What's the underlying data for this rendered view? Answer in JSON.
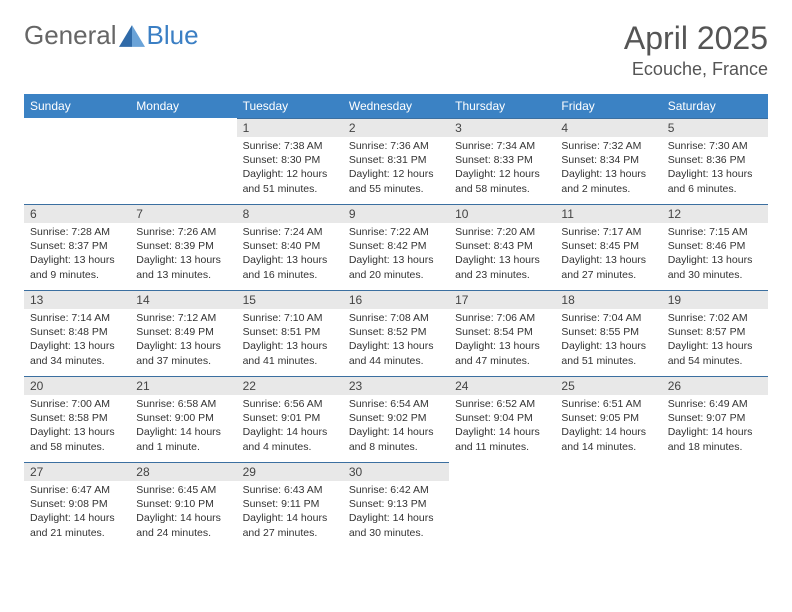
{
  "brand": {
    "part1": "General",
    "part2": "Blue"
  },
  "title": "April 2025",
  "location": "Ecouche, France",
  "colors": {
    "header_bg": "#3b82c4",
    "header_text": "#ffffff",
    "daynum_bg": "#e8e8e8",
    "border": "#3b6fa0",
    "text": "#333333",
    "title_text": "#555555"
  },
  "day_names": [
    "Sunday",
    "Monday",
    "Tuesday",
    "Wednesday",
    "Thursday",
    "Friday",
    "Saturday"
  ],
  "weeks": [
    [
      null,
      null,
      {
        "n": "1",
        "sr": "Sunrise: 7:38 AM",
        "ss": "Sunset: 8:30 PM",
        "d1": "Daylight: 12 hours",
        "d2": "and 51 minutes."
      },
      {
        "n": "2",
        "sr": "Sunrise: 7:36 AM",
        "ss": "Sunset: 8:31 PM",
        "d1": "Daylight: 12 hours",
        "d2": "and 55 minutes."
      },
      {
        "n": "3",
        "sr": "Sunrise: 7:34 AM",
        "ss": "Sunset: 8:33 PM",
        "d1": "Daylight: 12 hours",
        "d2": "and 58 minutes."
      },
      {
        "n": "4",
        "sr": "Sunrise: 7:32 AM",
        "ss": "Sunset: 8:34 PM",
        "d1": "Daylight: 13 hours",
        "d2": "and 2 minutes."
      },
      {
        "n": "5",
        "sr": "Sunrise: 7:30 AM",
        "ss": "Sunset: 8:36 PM",
        "d1": "Daylight: 13 hours",
        "d2": "and 6 minutes."
      }
    ],
    [
      {
        "n": "6",
        "sr": "Sunrise: 7:28 AM",
        "ss": "Sunset: 8:37 PM",
        "d1": "Daylight: 13 hours",
        "d2": "and 9 minutes."
      },
      {
        "n": "7",
        "sr": "Sunrise: 7:26 AM",
        "ss": "Sunset: 8:39 PM",
        "d1": "Daylight: 13 hours",
        "d2": "and 13 minutes."
      },
      {
        "n": "8",
        "sr": "Sunrise: 7:24 AM",
        "ss": "Sunset: 8:40 PM",
        "d1": "Daylight: 13 hours",
        "d2": "and 16 minutes."
      },
      {
        "n": "9",
        "sr": "Sunrise: 7:22 AM",
        "ss": "Sunset: 8:42 PM",
        "d1": "Daylight: 13 hours",
        "d2": "and 20 minutes."
      },
      {
        "n": "10",
        "sr": "Sunrise: 7:20 AM",
        "ss": "Sunset: 8:43 PM",
        "d1": "Daylight: 13 hours",
        "d2": "and 23 minutes."
      },
      {
        "n": "11",
        "sr": "Sunrise: 7:17 AM",
        "ss": "Sunset: 8:45 PM",
        "d1": "Daylight: 13 hours",
        "d2": "and 27 minutes."
      },
      {
        "n": "12",
        "sr": "Sunrise: 7:15 AM",
        "ss": "Sunset: 8:46 PM",
        "d1": "Daylight: 13 hours",
        "d2": "and 30 minutes."
      }
    ],
    [
      {
        "n": "13",
        "sr": "Sunrise: 7:14 AM",
        "ss": "Sunset: 8:48 PM",
        "d1": "Daylight: 13 hours",
        "d2": "and 34 minutes."
      },
      {
        "n": "14",
        "sr": "Sunrise: 7:12 AM",
        "ss": "Sunset: 8:49 PM",
        "d1": "Daylight: 13 hours",
        "d2": "and 37 minutes."
      },
      {
        "n": "15",
        "sr": "Sunrise: 7:10 AM",
        "ss": "Sunset: 8:51 PM",
        "d1": "Daylight: 13 hours",
        "d2": "and 41 minutes."
      },
      {
        "n": "16",
        "sr": "Sunrise: 7:08 AM",
        "ss": "Sunset: 8:52 PM",
        "d1": "Daylight: 13 hours",
        "d2": "and 44 minutes."
      },
      {
        "n": "17",
        "sr": "Sunrise: 7:06 AM",
        "ss": "Sunset: 8:54 PM",
        "d1": "Daylight: 13 hours",
        "d2": "and 47 minutes."
      },
      {
        "n": "18",
        "sr": "Sunrise: 7:04 AM",
        "ss": "Sunset: 8:55 PM",
        "d1": "Daylight: 13 hours",
        "d2": "and 51 minutes."
      },
      {
        "n": "19",
        "sr": "Sunrise: 7:02 AM",
        "ss": "Sunset: 8:57 PM",
        "d1": "Daylight: 13 hours",
        "d2": "and 54 minutes."
      }
    ],
    [
      {
        "n": "20",
        "sr": "Sunrise: 7:00 AM",
        "ss": "Sunset: 8:58 PM",
        "d1": "Daylight: 13 hours",
        "d2": "and 58 minutes."
      },
      {
        "n": "21",
        "sr": "Sunrise: 6:58 AM",
        "ss": "Sunset: 9:00 PM",
        "d1": "Daylight: 14 hours",
        "d2": "and 1 minute."
      },
      {
        "n": "22",
        "sr": "Sunrise: 6:56 AM",
        "ss": "Sunset: 9:01 PM",
        "d1": "Daylight: 14 hours",
        "d2": "and 4 minutes."
      },
      {
        "n": "23",
        "sr": "Sunrise: 6:54 AM",
        "ss": "Sunset: 9:02 PM",
        "d1": "Daylight: 14 hours",
        "d2": "and 8 minutes."
      },
      {
        "n": "24",
        "sr": "Sunrise: 6:52 AM",
        "ss": "Sunset: 9:04 PM",
        "d1": "Daylight: 14 hours",
        "d2": "and 11 minutes."
      },
      {
        "n": "25",
        "sr": "Sunrise: 6:51 AM",
        "ss": "Sunset: 9:05 PM",
        "d1": "Daylight: 14 hours",
        "d2": "and 14 minutes."
      },
      {
        "n": "26",
        "sr": "Sunrise: 6:49 AM",
        "ss": "Sunset: 9:07 PM",
        "d1": "Daylight: 14 hours",
        "d2": "and 18 minutes."
      }
    ],
    [
      {
        "n": "27",
        "sr": "Sunrise: 6:47 AM",
        "ss": "Sunset: 9:08 PM",
        "d1": "Daylight: 14 hours",
        "d2": "and 21 minutes."
      },
      {
        "n": "28",
        "sr": "Sunrise: 6:45 AM",
        "ss": "Sunset: 9:10 PM",
        "d1": "Daylight: 14 hours",
        "d2": "and 24 minutes."
      },
      {
        "n": "29",
        "sr": "Sunrise: 6:43 AM",
        "ss": "Sunset: 9:11 PM",
        "d1": "Daylight: 14 hours",
        "d2": "and 27 minutes."
      },
      {
        "n": "30",
        "sr": "Sunrise: 6:42 AM",
        "ss": "Sunset: 9:13 PM",
        "d1": "Daylight: 14 hours",
        "d2": "and 30 minutes."
      },
      null,
      null,
      null
    ]
  ]
}
